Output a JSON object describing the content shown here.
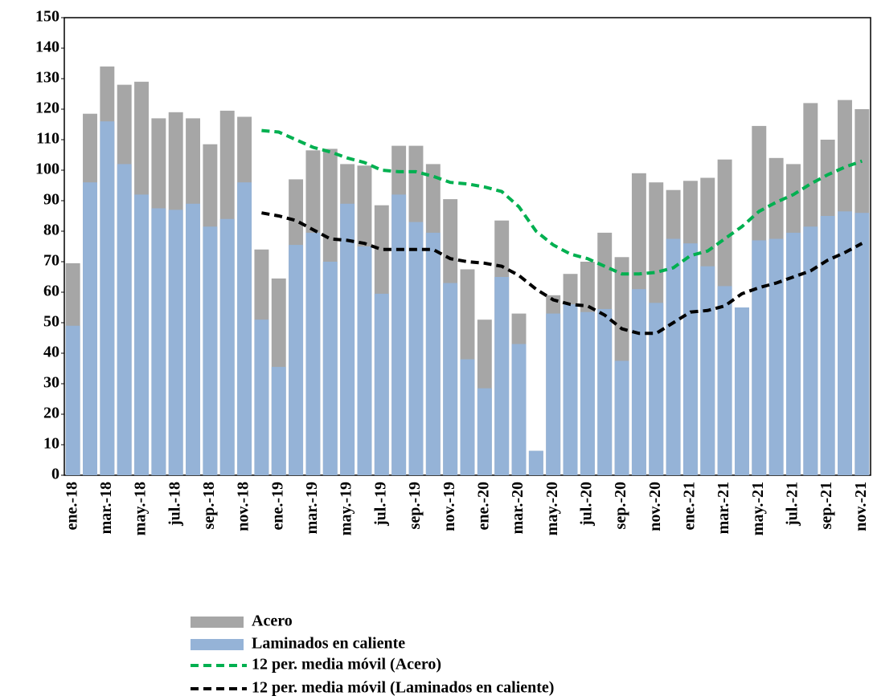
{
  "chart_data": {
    "type": "bar",
    "categories": [
      "ene.-18",
      null,
      "mar.-18",
      null,
      "may.-18",
      null,
      "jul.-18",
      null,
      "sep.-18",
      null,
      "nov.-18",
      null,
      "ene.-19",
      null,
      "mar.-19",
      null,
      "may.-19",
      null,
      "jul.-19",
      null,
      "sep.-19",
      null,
      "nov.-19",
      null,
      "ene.-20",
      null,
      "mar.-20",
      null,
      "may.-20",
      null,
      "jul.-20",
      null,
      "sep.-20",
      null,
      "nov.-20",
      null,
      "ene.-21",
      null,
      "mar.-21",
      null,
      "may.-21",
      null,
      "jul.-21",
      null,
      "sep.-21",
      null,
      "nov.-21"
    ],
    "series": [
      {
        "name": "Acero",
        "type": "bar",
        "color": "#a6a6a6",
        "values": [
          69.5,
          118.5,
          134,
          128,
          129,
          117,
          119,
          117,
          108.5,
          119.5,
          117.5,
          74,
          64.5,
          97,
          106.5,
          107,
          102,
          101.5,
          88.5,
          108,
          108,
          102,
          90.5,
          67.5,
          51,
          83.5,
          53,
          8,
          59,
          66,
          70,
          79.5,
          71.5,
          99,
          96,
          93.5,
          96.5,
          97.5,
          103.5,
          55,
          114.5,
          104,
          102,
          122,
          110,
          123,
          120
        ]
      },
      {
        "name": "Laminados en caliente",
        "type": "bar",
        "color": "#95b3d7",
        "values": [
          49,
          96,
          116,
          102,
          92,
          87.5,
          87,
          89,
          81.5,
          84,
          96,
          51,
          35.5,
          75.5,
          79.5,
          70,
          89,
          75,
          59.5,
          92,
          83,
          79.5,
          63,
          38,
          28.5,
          65,
          43,
          8,
          53,
          56,
          53.5,
          54.5,
          37.5,
          61,
          56.5,
          77.5,
          76,
          68.5,
          62,
          55,
          77,
          77.5,
          79.5,
          81.5,
          85,
          86.5,
          86
        ]
      },
      {
        "name": "12 per. media móvil (Acero)",
        "type": "line",
        "color": "#00b050",
        "values": [
          null,
          null,
          null,
          null,
          null,
          null,
          null,
          null,
          null,
          null,
          null,
          113,
          112.5,
          110,
          107.5,
          106,
          104,
          102.5,
          100,
          99.5,
          99.5,
          98,
          96,
          95.5,
          94.5,
          93,
          88,
          80,
          75.5,
          72.5,
          71,
          68.5,
          66,
          66,
          66.5,
          68,
          72,
          73.5,
          77.5,
          81.5,
          86.5,
          89.5,
          92,
          95.5,
          98.5,
          101,
          103
        ]
      },
      {
        "name": "12 per. media móvil (Laminados en caliente)",
        "type": "line",
        "color": "#000000",
        "values": [
          null,
          null,
          null,
          null,
          null,
          null,
          null,
          null,
          null,
          null,
          null,
          86,
          85,
          83.5,
          80.5,
          77.5,
          77,
          76,
          74,
          74,
          74,
          74,
          71,
          70,
          69.5,
          68.5,
          65.5,
          61,
          57.5,
          56,
          55.5,
          52.5,
          48,
          46.5,
          46.5,
          50,
          53.5,
          54,
          55.5,
          59.5,
          61.5,
          63,
          65,
          67,
          70.5,
          73,
          76
        ]
      }
    ],
    "ylim": [
      0,
      150
    ],
    "yticks": [
      0,
      10,
      20,
      30,
      40,
      50,
      60,
      70,
      80,
      90,
      100,
      110,
      120,
      130,
      140,
      150
    ]
  }
}
